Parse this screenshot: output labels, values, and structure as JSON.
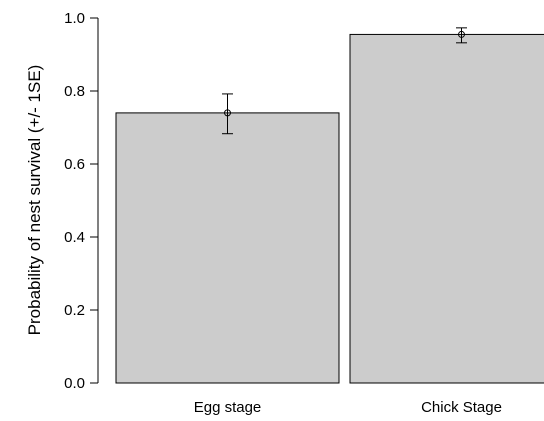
{
  "chart_data": {
    "type": "bar",
    "categories": [
      "Egg stage",
      "Chick Stage"
    ],
    "values": [
      0.74,
      0.955
    ],
    "error_bars": {
      "lower": [
        0.683,
        0.932
      ],
      "upper": [
        0.792,
        0.973
      ]
    },
    "xlabel": "",
    "ylabel": "Probability of nest survival (+/- 1SE)",
    "ylim": [
      0,
      1
    ],
    "y_ticks": [
      0.0,
      0.2,
      0.4,
      0.6,
      0.8,
      1.0
    ],
    "y_tick_labels": [
      "0.0",
      "0.2",
      "0.4",
      "0.6",
      "0.8",
      "1.0"
    ],
    "grid": false,
    "colors": {
      "bar_fill": "#cccccc",
      "outline": "#000000"
    }
  }
}
